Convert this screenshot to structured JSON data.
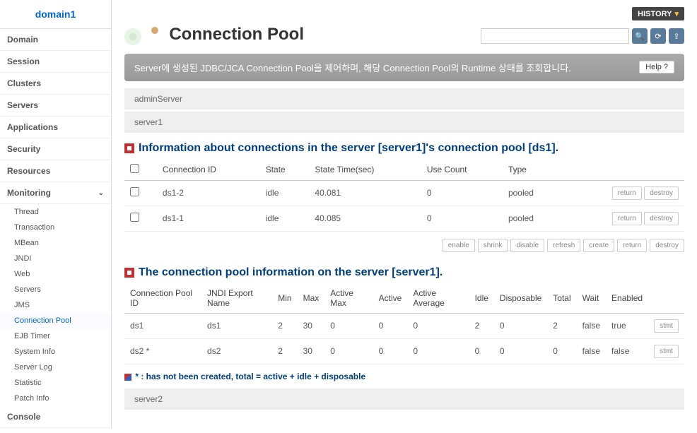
{
  "sidebar": {
    "domain": "domain1",
    "nav": [
      "Domain",
      "Session",
      "Clusters",
      "Servers",
      "Applications",
      "Security",
      "Resources"
    ],
    "monitoring_label": "Monitoring",
    "sub": [
      "Thread",
      "Transaction",
      "MBean",
      "JNDI",
      "Web",
      "Servers",
      "JMS",
      "Connection Pool",
      "EJB Timer",
      "System Info",
      "Server Log",
      "Statistic",
      "Patch Info"
    ],
    "active_sub": "Connection Pool",
    "console_label": "Console"
  },
  "header": {
    "history_label": "HISTORY",
    "page_title": "Connection Pool",
    "description": "Server에 생성된 JDBC/JCA Connection Pool을 제어하며, 해당 Connection Pool의 Runtime 상태를 조회합니다.",
    "help_label": "Help",
    "search_placeholder": ""
  },
  "servers": {
    "admin": "adminServer",
    "s1": "server1",
    "s2": "server2"
  },
  "section1": {
    "title": "Information about connections in the server [server1]'s connection pool [ds1].",
    "cols": [
      "Connection ID",
      "State",
      "State Time(sec)",
      "Use Count",
      "Type"
    ],
    "rows": [
      {
        "id": "ds1-2",
        "state": "idle",
        "time": "40.081",
        "use": "0",
        "type": "pooled"
      },
      {
        "id": "ds1-1",
        "state": "idle",
        "time": "40.085",
        "use": "0",
        "type": "pooled"
      }
    ],
    "btn_return": "return",
    "btn_destroy": "destroy"
  },
  "actions": {
    "enable": "enable",
    "shrink": "shrink",
    "disable": "disable",
    "refresh": "refresh",
    "create": "create",
    "return": "return",
    "destroy": "destroy"
  },
  "section2": {
    "title": "The connection pool information on the server [server1].",
    "cols": [
      "Connection Pool ID",
      "JNDI Export Name",
      "Min",
      "Max",
      "Active Max",
      "Active",
      "Active Average",
      "Idle",
      "Disposable",
      "Total",
      "Wait",
      "Enabled",
      ""
    ],
    "rows": [
      {
        "id": "ds1",
        "jndi": "ds1",
        "min": "2",
        "max": "30",
        "amax": "0",
        "active": "0",
        "aavg": "0",
        "idle": "2",
        "disp": "0",
        "total": "2",
        "wait": "false",
        "enabled": "true"
      },
      {
        "id": "ds2 *",
        "jndi": "ds2",
        "min": "2",
        "max": "30",
        "amax": "0",
        "active": "0",
        "aavg": "0",
        "idle": "0",
        "disp": "0",
        "total": "0",
        "wait": "false",
        "enabled": "false"
      }
    ],
    "btn_stmt": "stmt"
  },
  "footnote": "* : has not been created, total = active + idle + disposable",
  "colors": {
    "link": "#0066cc",
    "heading": "#003d7a",
    "accent_red": "#c03030",
    "desc_bar_bg": "#999999"
  }
}
